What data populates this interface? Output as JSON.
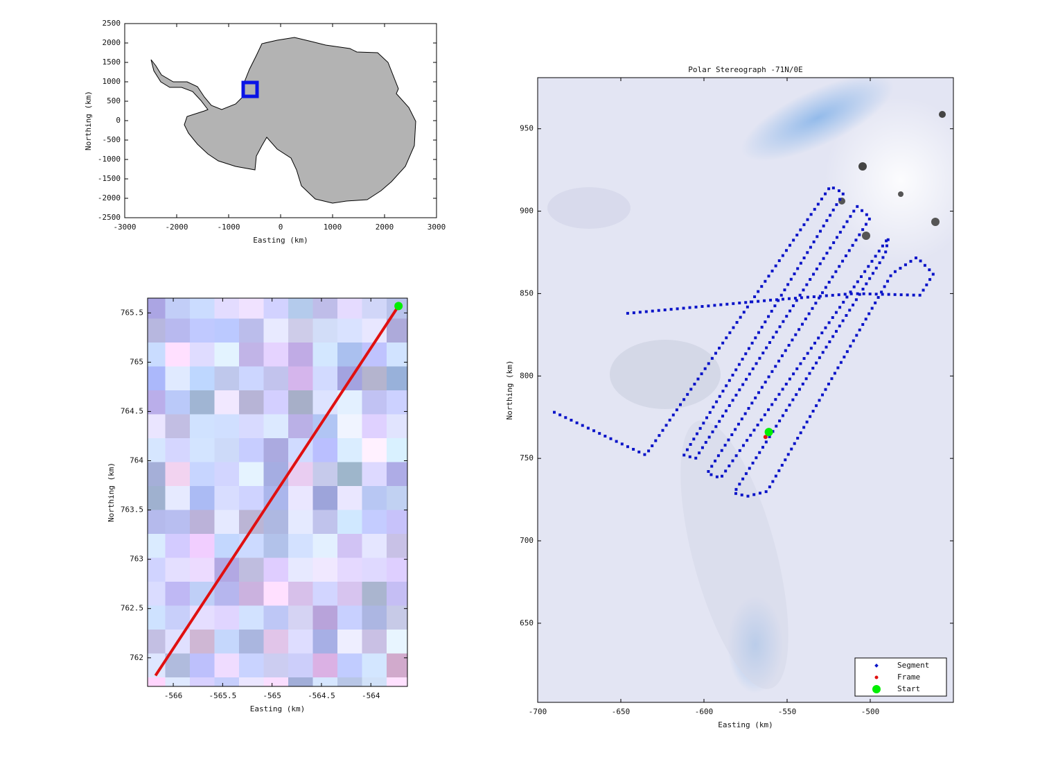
{
  "chart_data": [
    {
      "type": "map",
      "xlabel": "Easting (km)",
      "ylabel": "Northing (km)",
      "xlim": [
        -3000,
        3000
      ],
      "ylim": [
        -2500,
        2500
      ],
      "xticks": [
        -3000,
        -2000,
        -1000,
        0,
        1000,
        2000,
        3000
      ],
      "yticks": [
        -2500,
        -2000,
        -1500,
        -1000,
        -500,
        0,
        500,
        1000,
        1500,
        2000,
        2500
      ]
    },
    {
      "type": "line",
      "xlabel": "Easting (km)",
      "ylabel": "Northing (km)",
      "xlim": [
        -566.26,
        -563.63
      ],
      "ylim": [
        761.71,
        765.65
      ],
      "xticks": [
        -566,
        -565.5,
        -565,
        -564.5,
        -564
      ],
      "yticks": [
        762,
        762.5,
        763,
        763.5,
        764,
        764.5,
        765,
        765.5
      ],
      "series": [
        {
          "color": "#e01010",
          "style": "line",
          "x": [
            -566.18,
            -563.72
          ],
          "values": [
            761.82,
            765.57
          ]
        },
        {
          "color": "#00ee00",
          "style": "point",
          "x": [
            -563.72
          ],
          "values": [
            765.57
          ]
        }
      ]
    },
    {
      "type": "line",
      "title": "Polar Stereograph -71N/0E",
      "xlabel": "Easting (km)",
      "ylabel": "Northing (km)",
      "xlim": [
        -700,
        -450
      ],
      "ylim": [
        602,
        981
      ],
      "xticks": [
        -700,
        -650,
        -600,
        -550,
        -500
      ],
      "yticks": [
        650,
        700,
        750,
        800,
        850,
        900,
        950
      ],
      "legend": "lower right",
      "series": [
        {
          "name": "Segment",
          "color": "#0a14c8",
          "style": "dotted",
          "x": [
            -690,
            -635,
            -524,
            -516,
            -612,
            -605,
            -508,
            -500,
            -598,
            -590,
            -489,
            -491,
            -582,
            -574,
            -562,
            -487,
            -472,
            -462,
            -470,
            -510,
            -560,
            -646
          ],
          "values": [
            778,
            752,
            915,
            911,
            752,
            750,
            903,
            896,
            741,
            738,
            884,
            874,
            729,
            727,
            730,
            862,
            872,
            862,
            849,
            850,
            846,
            838
          ]
        },
        {
          "name": "Frame",
          "color": "#e01010",
          "style": "point",
          "x": [
            -563
          ],
          "values": [
            763
          ]
        },
        {
          "name": "Start",
          "color": "#00ee00",
          "style": "point",
          "x": [
            -561
          ],
          "values": [
            766
          ]
        }
      ]
    }
  ]
}
